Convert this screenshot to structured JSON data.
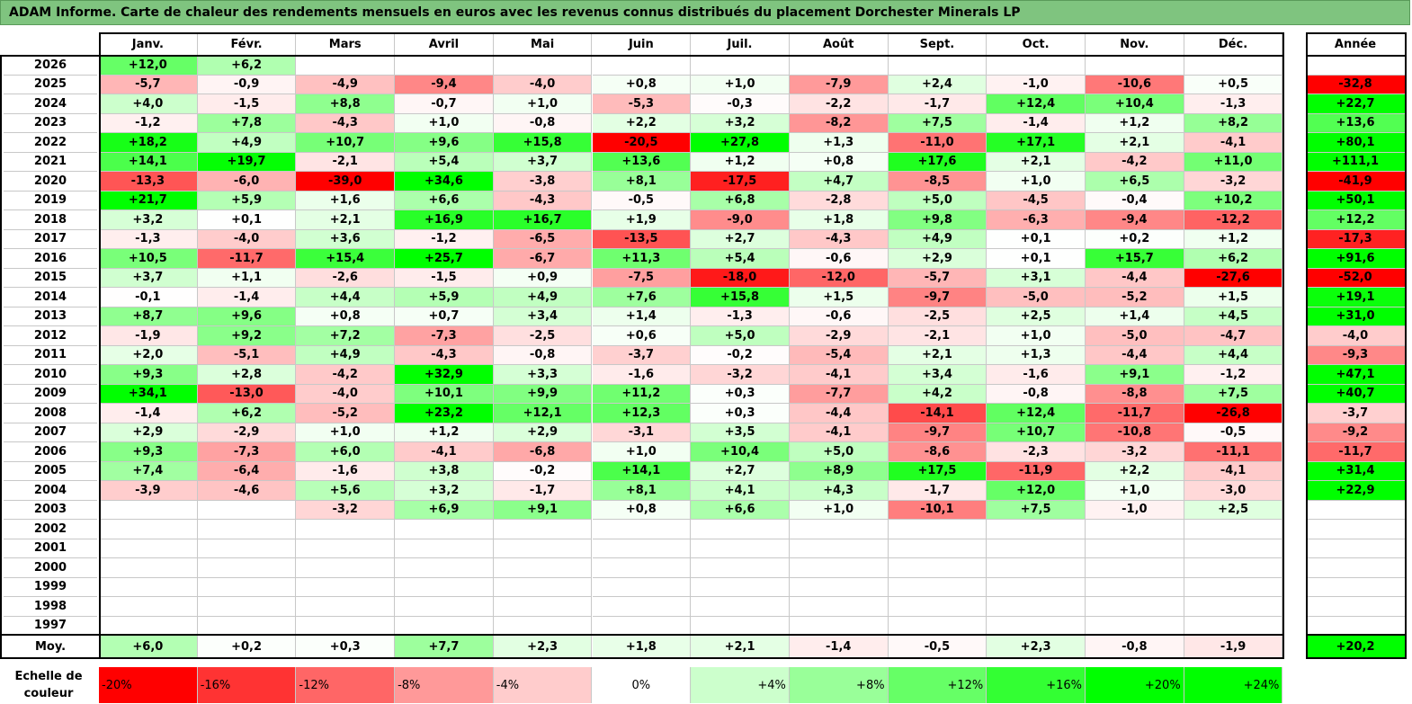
{
  "title": "ADAM Informe. Carte de chaleur des rendements mensuels en euros avec les revenus connus distribués du placement Dorchester Minerals LP",
  "chart_data": {
    "type": "heatmap",
    "title": "ADAM Informe. Carte de chaleur des rendements mensuels en euros avec les revenus connus distribués du placement Dorchester Minerals LP",
    "columns": [
      "Janv.",
      "Févr.",
      "Mars",
      "Avril",
      "Mai",
      "Juin",
      "Juil.",
      "Août",
      "Sept.",
      "Oct.",
      "Nov.",
      "Déc."
    ],
    "annual_label": "Année",
    "rows": [
      {
        "year": "2026",
        "values": [
          12.0,
          6.2,
          null,
          null,
          null,
          null,
          null,
          null,
          null,
          null,
          null,
          null
        ],
        "annual": null
      },
      {
        "year": "2025",
        "values": [
          -5.7,
          -0.9,
          -4.9,
          -9.4,
          -4.0,
          0.8,
          1.0,
          -7.9,
          2.4,
          -1.0,
          -10.6,
          0.5
        ],
        "annual": -32.8
      },
      {
        "year": "2024",
        "values": [
          4.0,
          -1.5,
          8.8,
          -0.7,
          1.0,
          -5.3,
          -0.3,
          -2.2,
          -1.7,
          12.4,
          10.4,
          -1.3
        ],
        "annual": 22.7
      },
      {
        "year": "2023",
        "values": [
          -1.2,
          7.8,
          -4.3,
          1.0,
          -0.8,
          2.2,
          3.2,
          -8.2,
          7.5,
          -1.4,
          1.2,
          8.2
        ],
        "annual": 13.6
      },
      {
        "year": "2022",
        "values": [
          18.2,
          4.9,
          10.7,
          9.6,
          15.8,
          -20.5,
          27.8,
          1.3,
          -11.0,
          17.1,
          2.1,
          -4.1
        ],
        "annual": 80.1
      },
      {
        "year": "2021",
        "values": [
          14.1,
          19.7,
          -2.1,
          5.4,
          3.7,
          13.6,
          1.2,
          0.8,
          17.6,
          2.1,
          -4.2,
          11.0
        ],
        "annual": 111.1
      },
      {
        "year": "2020",
        "values": [
          -13.3,
          -6.0,
          -39.0,
          34.6,
          -3.8,
          8.1,
          -17.5,
          4.7,
          -8.5,
          1.0,
          6.5,
          -3.2
        ],
        "annual": -41.9
      },
      {
        "year": "2019",
        "values": [
          21.7,
          5.9,
          1.6,
          6.6,
          -4.3,
          -0.5,
          6.8,
          -2.8,
          5.0,
          -4.5,
          -0.4,
          10.2
        ],
        "annual": 50.1
      },
      {
        "year": "2018",
        "values": [
          3.2,
          0.1,
          2.1,
          16.9,
          16.7,
          1.9,
          -9.0,
          1.8,
          9.8,
          -6.3,
          -9.4,
          -12.2
        ],
        "annual": 12.2
      },
      {
        "year": "2017",
        "values": [
          -1.3,
          -4.0,
          3.6,
          -1.2,
          -6.5,
          -13.5,
          2.7,
          -4.3,
          4.9,
          0.1,
          0.2,
          1.2
        ],
        "annual": -17.3
      },
      {
        "year": "2016",
        "values": [
          10.5,
          -11.7,
          15.4,
          25.7,
          -6.7,
          11.3,
          5.4,
          -0.6,
          2.9,
          0.1,
          15.7,
          6.2
        ],
        "annual": 91.6
      },
      {
        "year": "2015",
        "values": [
          3.7,
          1.1,
          -2.6,
          -1.5,
          0.9,
          -7.5,
          -18.0,
          -12.0,
          -5.7,
          3.1,
          -4.4,
          -27.6
        ],
        "annual": -52.0
      },
      {
        "year": "2014",
        "values": [
          -0.1,
          -1.4,
          4.4,
          5.9,
          4.9,
          7.6,
          15.8,
          1.5,
          -9.7,
          -5.0,
          -5.2,
          1.5
        ],
        "annual": 19.1
      },
      {
        "year": "2013",
        "values": [
          8.7,
          9.6,
          0.8,
          0.7,
          3.4,
          1.4,
          -1.3,
          -0.6,
          -2.5,
          2.5,
          1.4,
          4.5
        ],
        "annual": 31.0
      },
      {
        "year": "2012",
        "values": [
          -1.9,
          9.2,
          7.2,
          -7.3,
          -2.5,
          0.6,
          5.0,
          -2.9,
          -2.1,
          1.0,
          -5.0,
          -4.7
        ],
        "annual": -4.0
      },
      {
        "year": "2011",
        "values": [
          2.0,
          -5.1,
          4.9,
          -4.3,
          -0.8,
          -3.7,
          -0.2,
          -5.4,
          2.1,
          1.3,
          -4.4,
          4.4
        ],
        "annual": -9.3
      },
      {
        "year": "2010",
        "values": [
          9.3,
          2.8,
          -4.2,
          32.9,
          3.3,
          -1.6,
          -3.2,
          -4.1,
          3.4,
          -1.6,
          9.1,
          -1.2
        ],
        "annual": 47.1
      },
      {
        "year": "2009",
        "values": [
          34.1,
          -13.0,
          -4.0,
          10.1,
          9.9,
          11.2,
          0.3,
          -7.7,
          4.2,
          -0.8,
          -8.8,
          7.5
        ],
        "annual": 40.7
      },
      {
        "year": "2008",
        "values": [
          -1.4,
          6.2,
          -5.2,
          23.2,
          12.1,
          12.3,
          0.3,
          -4.4,
          -14.1,
          12.4,
          -11.7,
          -26.8
        ],
        "annual": -3.7
      },
      {
        "year": "2007",
        "values": [
          2.9,
          -2.9,
          1.0,
          1.2,
          2.9,
          -3.1,
          3.5,
          -4.1,
          -9.7,
          10.7,
          -10.8,
          -0.5
        ],
        "annual": -9.2
      },
      {
        "year": "2006",
        "values": [
          9.3,
          -7.3,
          6.0,
          -4.1,
          -6.8,
          1.0,
          10.4,
          5.0,
          -8.6,
          -2.3,
          -3.2,
          -11.1
        ],
        "annual": -11.7
      },
      {
        "year": "2005",
        "values": [
          7.4,
          -6.4,
          -1.6,
          3.8,
          -0.2,
          14.1,
          2.7,
          8.9,
          17.5,
          -11.9,
          2.2,
          -4.1
        ],
        "annual": 31.4
      },
      {
        "year": "2004",
        "values": [
          -3.9,
          -4.6,
          5.6,
          3.2,
          -1.7,
          8.1,
          4.1,
          4.3,
          -1.7,
          12.0,
          1.0,
          -3.0
        ],
        "annual": 22.9
      },
      {
        "year": "2003",
        "values": [
          null,
          null,
          -3.2,
          6.9,
          9.1,
          0.8,
          6.6,
          1.0,
          -10.1,
          7.5,
          -1.0,
          2.5
        ],
        "annual": null
      },
      {
        "year": "2002",
        "values": [
          null,
          null,
          null,
          null,
          null,
          null,
          null,
          null,
          null,
          null,
          null,
          null
        ],
        "annual": null
      },
      {
        "year": "2001",
        "values": [
          null,
          null,
          null,
          null,
          null,
          null,
          null,
          null,
          null,
          null,
          null,
          null
        ],
        "annual": null
      },
      {
        "year": "2000",
        "values": [
          null,
          null,
          null,
          null,
          null,
          null,
          null,
          null,
          null,
          null,
          null,
          null
        ],
        "annual": null
      },
      {
        "year": "1999",
        "values": [
          null,
          null,
          null,
          null,
          null,
          null,
          null,
          null,
          null,
          null,
          null,
          null
        ],
        "annual": null
      },
      {
        "year": "1998",
        "values": [
          null,
          null,
          null,
          null,
          null,
          null,
          null,
          null,
          null,
          null,
          null,
          null
        ],
        "annual": null
      },
      {
        "year": "1997",
        "values": [
          null,
          null,
          null,
          null,
          null,
          null,
          null,
          null,
          null,
          null,
          null,
          null
        ],
        "annual": null
      }
    ],
    "average": {
      "label": "Moy.",
      "values": [
        6.0,
        0.2,
        0.3,
        7.7,
        2.3,
        1.8,
        2.1,
        -1.4,
        -0.5,
        2.3,
        -0.8,
        -1.9
      ],
      "annual": 20.2
    },
    "scale": {
      "label_lines": [
        "Echelle de",
        "couleur"
      ],
      "stops": [
        {
          "label": "-20%",
          "color": "#ff0000",
          "align": "left"
        },
        {
          "label": "-16%",
          "color": "#ff3333",
          "align": "left"
        },
        {
          "label": "-12%",
          "color": "#ff6666",
          "align": "left"
        },
        {
          "label": "-8%",
          "color": "#ff9999",
          "align": "left"
        },
        {
          "label": "-4%",
          "color": "#ffcccc",
          "align": "left"
        },
        {
          "label": "0%",
          "color": "#ffffff",
          "align": "center"
        },
        {
          "label": "+4%",
          "color": "#ccffcc",
          "align": "right"
        },
        {
          "label": "+8%",
          "color": "#99ff99",
          "align": "right"
        },
        {
          "label": "+12%",
          "color": "#66ff66",
          "align": "right"
        },
        {
          "label": "+16%",
          "color": "#33ff33",
          "align": "right"
        },
        {
          "label": "+20%",
          "color": "#00ff00",
          "align": "right"
        },
        {
          "label": "+24%",
          "color": "#00ff00",
          "align": "right"
        }
      ]
    },
    "colors": {
      "negative_full": "#ff0000",
      "positive_full": "#00ff00",
      "neutral": "#ffffff",
      "title_bar": "#7fc47f"
    }
  }
}
